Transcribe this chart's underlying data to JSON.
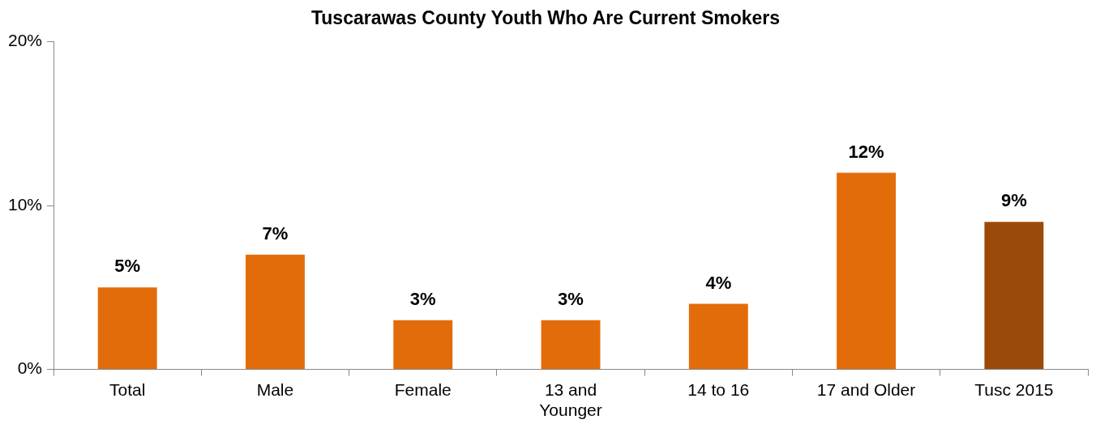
{
  "chart_data": {
    "type": "bar",
    "title": "Tuscarawas County Youth Who Are Current Smokers",
    "categories": [
      "Total",
      "Male",
      "Female",
      "13 and Younger",
      "14 to 16",
      "17 and Older",
      "Tusc 2015"
    ],
    "values": [
      5,
      7,
      3,
      3,
      4,
      12,
      9
    ],
    "colors": [
      "#e36c0a",
      "#e36c0a",
      "#e36c0a",
      "#e36c0a",
      "#e36c0a",
      "#e36c0a",
      "#9c4a09"
    ],
    "value_labels": [
      "5%",
      "7%",
      "3%",
      "3%",
      "4%",
      "12%",
      "9%"
    ],
    "ylim": [
      0,
      20
    ],
    "yticks": [
      {
        "value": 0,
        "label": "0%"
      },
      {
        "value": 10,
        "label": "10%"
      },
      {
        "value": 20,
        "label": "20%"
      }
    ],
    "grid": false,
    "legend": false
  }
}
